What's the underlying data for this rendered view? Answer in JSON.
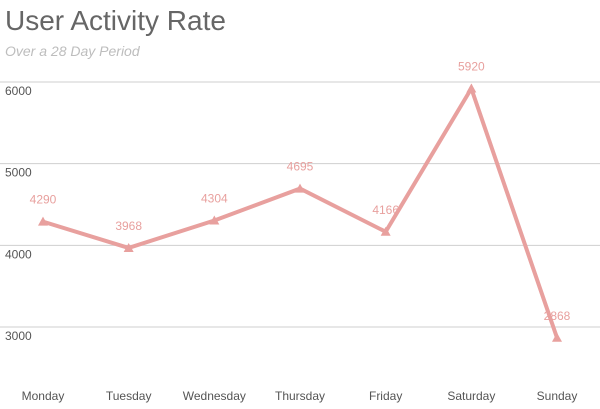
{
  "chart_data": {
    "type": "line",
    "title": "User Activity Rate",
    "subtitle": "Over a 28 Day Period",
    "categories": [
      "Monday",
      "Tuesday",
      "Wednesday",
      "Thursday",
      "Friday",
      "Saturday",
      "Sunday"
    ],
    "series": [
      {
        "values": [
          4290,
          3968,
          4304,
          4695,
          4166,
          5920,
          2868
        ],
        "color": "#e8a09e",
        "marker": "triangle"
      }
    ],
    "y_ticks": [
      6000,
      5000,
      4000,
      3000
    ],
    "ylim": [
      3000,
      6000
    ],
    "grid": true,
    "data_labels": true
  }
}
